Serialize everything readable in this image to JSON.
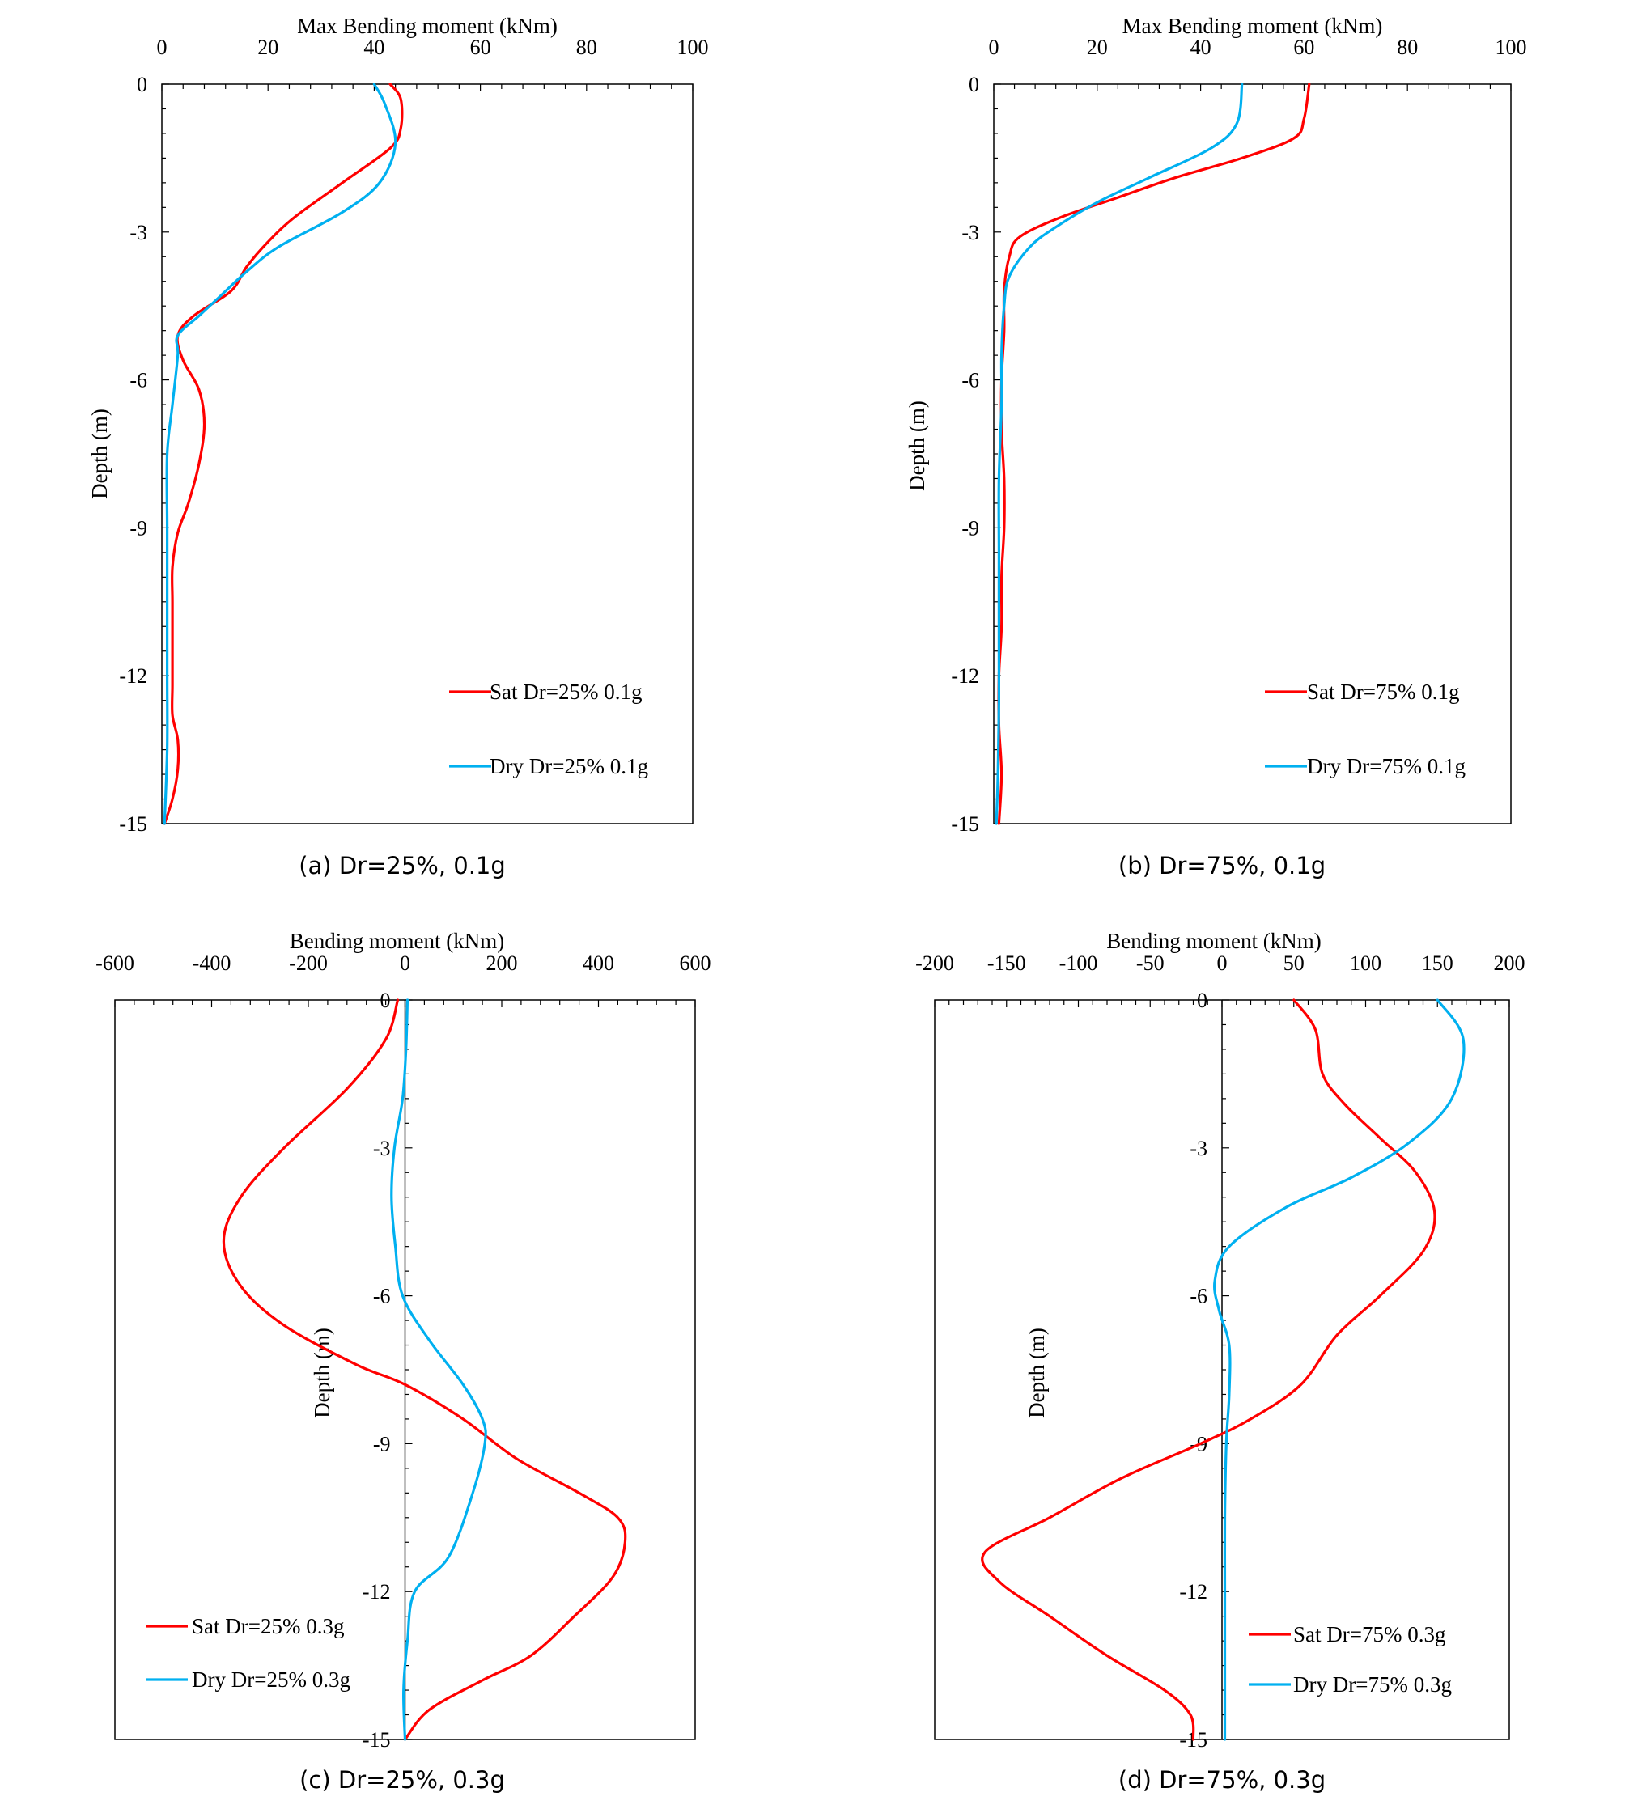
{
  "chart_data": [
    {
      "id": "a",
      "type": "line",
      "caption": "(a) Dr=25%, 0.1g",
      "xlabel": "Max Bending moment (kNm)",
      "ylabel": "Depth (m)",
      "xlim": [
        0,
        100
      ],
      "ylim": [
        -15,
        0
      ],
      "xticks": [
        0,
        20,
        40,
        60,
        80,
        100
      ],
      "xtick_labels": [
        "0",
        "20",
        "40",
        "60",
        "80",
        "100"
      ],
      "yticks": [
        0,
        -3,
        -6,
        -9,
        -12,
        -15
      ],
      "ytick_labels": [
        "0",
        "-3",
        "-6",
        "-9",
        "-12",
        "-15"
      ],
      "legend_position": "bottom-right",
      "series": [
        {
          "name": "Sat Dr=25% 0.1g",
          "color": "#ff0000",
          "points": [
            [
              43,
              0
            ],
            [
              45,
              -0.3
            ],
            [
              45,
              -0.9
            ],
            [
              43,
              -1.3
            ],
            [
              34,
              -2
            ],
            [
              25,
              -2.7
            ],
            [
              20,
              -3.2
            ],
            [
              16,
              -3.7
            ],
            [
              13,
              -4.2
            ],
            [
              6,
              -4.7
            ],
            [
              3,
              -5.1
            ],
            [
              4,
              -5.6
            ],
            [
              7,
              -6.2
            ],
            [
              8,
              -6.9
            ],
            [
              7,
              -7.7
            ],
            [
              5,
              -8.5
            ],
            [
              3,
              -9.1
            ],
            [
              2,
              -9.8
            ],
            [
              2,
              -10.5
            ],
            [
              2,
              -11.5
            ],
            [
              2,
              -12.2
            ],
            [
              2,
              -12.8
            ],
            [
              3,
              -13.3
            ],
            [
              3,
              -13.9
            ],
            [
              2,
              -14.5
            ],
            [
              0.5,
              -15
            ]
          ]
        },
        {
          "name": "Dry Dr=25% 0.1g",
          "color": "#00b0f0",
          "points": [
            [
              40,
              0
            ],
            [
              42,
              -0.4
            ],
            [
              44,
              -1.2
            ],
            [
              41,
              -2
            ],
            [
              34,
              -2.6
            ],
            [
              22,
              -3.3
            ],
            [
              16,
              -3.8
            ],
            [
              11,
              -4.3
            ],
            [
              7,
              -4.7
            ],
            [
              3,
              -5.1
            ],
            [
              3,
              -5.5
            ],
            [
              2,
              -6.5
            ],
            [
              1,
              -7.5
            ],
            [
              1,
              -9
            ],
            [
              1,
              -10.5
            ],
            [
              1,
              -12
            ],
            [
              1,
              -13.5
            ],
            [
              0.5,
              -15
            ]
          ]
        }
      ]
    },
    {
      "id": "b",
      "type": "line",
      "caption": "(b) Dr=75%, 0.1g",
      "xlabel": "Max Bending moment (kNm)",
      "ylabel": "Depth (m)",
      "xlim": [
        0,
        100
      ],
      "ylim": [
        -15,
        0
      ],
      "xticks": [
        0,
        20,
        40,
        60,
        80,
        100
      ],
      "xtick_labels": [
        "0",
        "20",
        "40",
        "60",
        "80",
        "100"
      ],
      "yticks": [
        0,
        -3,
        -6,
        -9,
        -12,
        -15
      ],
      "ytick_labels": [
        "0",
        "-3",
        "-6",
        "-9",
        "-12",
        "-15"
      ],
      "legend_position": "bottom-right",
      "series": [
        {
          "name": "Sat Dr=75% 0.1g",
          "color": "#ff0000",
          "points": [
            [
              61,
              0
            ],
            [
              60,
              -0.7
            ],
            [
              58,
              -1.1
            ],
            [
              48,
              -1.5
            ],
            [
              35,
              -1.9
            ],
            [
              24,
              -2.3
            ],
            [
              13,
              -2.7
            ],
            [
              5,
              -3.1
            ],
            [
              3,
              -3.5
            ],
            [
              2,
              -4.2
            ],
            [
              2,
              -5
            ],
            [
              1.5,
              -6
            ],
            [
              1.5,
              -7
            ],
            [
              2,
              -8
            ],
            [
              2,
              -9
            ],
            [
              1.5,
              -10
            ],
            [
              1.5,
              -11
            ],
            [
              1,
              -12
            ],
            [
              1,
              -13
            ],
            [
              1.5,
              -14
            ],
            [
              1,
              -15
            ]
          ]
        },
        {
          "name": "Dry Dr=75% 0.1g",
          "color": "#00b0f0",
          "points": [
            [
              48,
              0
            ],
            [
              47,
              -0.8
            ],
            [
              42,
              -1.3
            ],
            [
              30,
              -1.9
            ],
            [
              20,
              -2.4
            ],
            [
              12,
              -2.9
            ],
            [
              7,
              -3.3
            ],
            [
              3,
              -3.9
            ],
            [
              2,
              -4.5
            ],
            [
              1.5,
              -5.5
            ],
            [
              1.5,
              -6.5
            ],
            [
              1,
              -8
            ],
            [
              1,
              -9.5
            ],
            [
              1,
              -11
            ],
            [
              1,
              -12.5
            ],
            [
              0.8,
              -14
            ],
            [
              0.5,
              -15
            ]
          ]
        }
      ]
    },
    {
      "id": "c",
      "type": "line",
      "caption": "(c) Dr=25%, 0.3g",
      "xlabel": "Bending moment (kNm)",
      "ylabel": "Depth (m)",
      "xlim": [
        -600,
        600
      ],
      "ylim": [
        -15,
        0
      ],
      "xticks": [
        -600,
        -400,
        -200,
        0,
        200,
        400,
        600
      ],
      "xtick_labels": [
        "-600",
        "-400",
        "-200",
        "0",
        "200",
        "400",
        "600"
      ],
      "yticks": [
        0,
        -3,
        -6,
        -9,
        -12,
        -15
      ],
      "ytick_labels": [
        "0",
        "-3",
        "-6",
        "-9",
        "-12",
        "-15"
      ],
      "legend_position": "bottom-left",
      "series": [
        {
          "name": "Sat Dr=25% 0.3g",
          "color": "#ff0000",
          "points": [
            [
              -15,
              0
            ],
            [
              -40,
              -0.8
            ],
            [
              -120,
              -1.8
            ],
            [
              -250,
              -3
            ],
            [
              -340,
              -4
            ],
            [
              -375,
              -4.9
            ],
            [
              -340,
              -5.8
            ],
            [
              -250,
              -6.6
            ],
            [
              -100,
              -7.4
            ],
            [
              0,
              -7.8
            ],
            [
              120,
              -8.5
            ],
            [
              230,
              -9.3
            ],
            [
              360,
              -10
            ],
            [
              440,
              -10.5
            ],
            [
              455,
              -11
            ],
            [
              430,
              -11.7
            ],
            [
              350,
              -12.5
            ],
            [
              260,
              -13.3
            ],
            [
              160,
              -13.8
            ],
            [
              50,
              -14.4
            ],
            [
              0,
              -15
            ]
          ]
        },
        {
          "name": "Dry Dr=25% 0.3g",
          "color": "#00b0f0",
          "points": [
            [
              5,
              0
            ],
            [
              2,
              -1
            ],
            [
              -5,
              -2
            ],
            [
              -22,
              -3
            ],
            [
              -28,
              -4
            ],
            [
              -20,
              -5
            ],
            [
              -5,
              -6
            ],
            [
              50,
              -6.9
            ],
            [
              120,
              -7.8
            ],
            [
              160,
              -8.5
            ],
            [
              165,
              -9
            ],
            [
              140,
              -10
            ],
            [
              90,
              -11.3
            ],
            [
              20,
              -12
            ],
            [
              5,
              -13
            ],
            [
              -3,
              -14
            ],
            [
              0,
              -15
            ]
          ]
        }
      ]
    },
    {
      "id": "d",
      "type": "line",
      "caption": "(d) Dr=75%, 0.3g",
      "xlabel": "Bending moment (kNm)",
      "ylabel": "Depth (m)",
      "xlim": [
        -200,
        200
      ],
      "ylim": [
        -15,
        0
      ],
      "xticks": [
        -200,
        -150,
        -100,
        -50,
        0,
        50,
        100,
        150,
        200
      ],
      "xtick_labels": [
        "-200",
        "-150",
        "-100",
        "-50",
        "0",
        "50",
        "100",
        "150",
        "200"
      ],
      "yticks": [
        0,
        -3,
        -6,
        -9,
        -12,
        -15
      ],
      "ytick_labels": [
        "0",
        "-3",
        "-6",
        "-9",
        "-12",
        "-15"
      ],
      "legend_position": "bottom-right",
      "series": [
        {
          "name": "Sat Dr=75% 0.3g",
          "color": "#ff0000",
          "points": [
            [
              50,
              0
            ],
            [
              65,
              -0.6
            ],
            [
              70,
              -1.5
            ],
            [
              85,
              -2.1
            ],
            [
              110,
              -2.8
            ],
            [
              135,
              -3.5
            ],
            [
              148,
              -4.3
            ],
            [
              140,
              -5.1
            ],
            [
              110,
              -6
            ],
            [
              80,
              -6.8
            ],
            [
              55,
              -7.8
            ],
            [
              20,
              -8.5
            ],
            [
              -15,
              -9
            ],
            [
              -70,
              -9.7
            ],
            [
              -120,
              -10.5
            ],
            [
              -165,
              -11.2
            ],
            [
              -155,
              -11.8
            ],
            [
              -120,
              -12.5
            ],
            [
              -80,
              -13.3
            ],
            [
              -40,
              -14
            ],
            [
              -22,
              -14.5
            ],
            [
              -20,
              -15
            ]
          ]
        },
        {
          "name": "Dry Dr=75% 0.3g",
          "color": "#00b0f0",
          "points": [
            [
              150,
              0
            ],
            [
              168,
              -0.8
            ],
            [
              160,
              -2
            ],
            [
              130,
              -2.9
            ],
            [
              90,
              -3.6
            ],
            [
              45,
              -4.2
            ],
            [
              5,
              -5
            ],
            [
              -5,
              -5.7
            ],
            [
              -2,
              -6.3
            ],
            [
              5,
              -7
            ],
            [
              5,
              -8
            ],
            [
              3,
              -9
            ],
            [
              2,
              -10.5
            ],
            [
              2,
              -12
            ],
            [
              2,
              -13.5
            ],
            [
              2,
              -15
            ]
          ]
        }
      ]
    }
  ]
}
